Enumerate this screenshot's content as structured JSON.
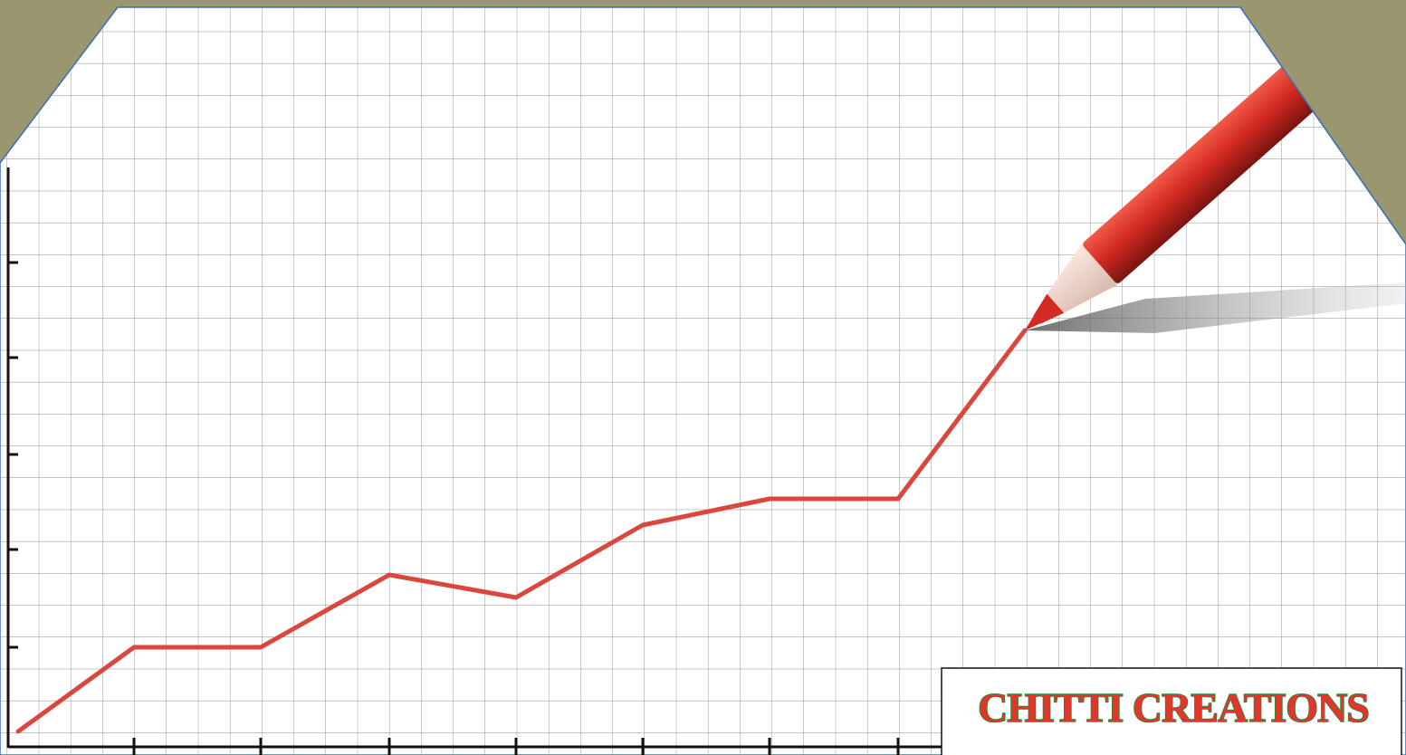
{
  "watermark": "CHITTI CREATIONS"
}
